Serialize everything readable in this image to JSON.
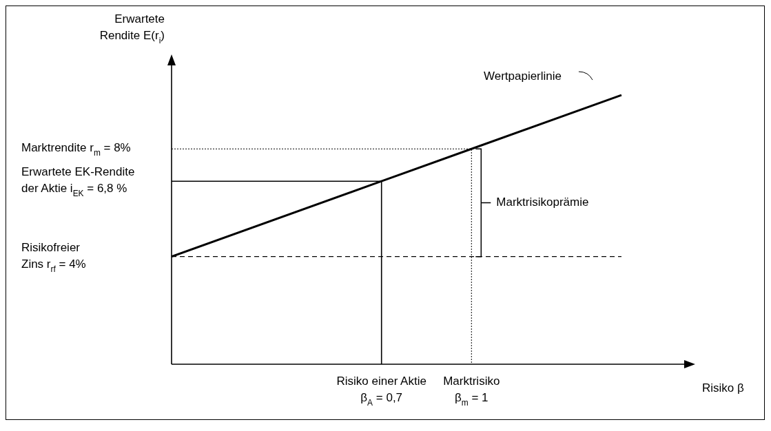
{
  "chart_data": {
    "type": "line",
    "xlabel": "Risiko β",
    "ylabel": "Erwartete\nRendite E(r$_{i}$)",
    "ylim": [
      0,
      11
    ],
    "categories": [
      null,
      null,
      null,
      null,
      null,
      null,
      null,
      "Risiko einer Aktie\nβ$_{A}$ = 0,7",
      null,
      null,
      "Marktrisiko\nβ$_{m}$ = 1",
      null,
      null,
      null,
      null,
      null,
      null,
      null
    ],
    "yticks": [
      {
        "value": 4,
        "label": "Risikofreier\nZins r$_{rf}$ = 4%"
      },
      {
        "value": 6.8,
        "label": "Erwartete EK-Rendite\nder Aktie i$_{EK}$ = 6,8 %"
      },
      {
        "value": 8,
        "label": "Marktrendite r$_{m}$ = 8%"
      }
    ],
    "series": [
      {
        "name": "Wertpapierlinie",
        "color": "#000000",
        "values": [
          4,
          null,
          null,
          null,
          null,
          null,
          null,
          6.8,
          null,
          null,
          8,
          null,
          null,
          null,
          null,
          10,
          null,
          null
        ]
      },
      {
        "color": "#000000",
        "values": [
          4,
          null,
          null,
          null,
          null,
          null,
          null,
          null,
          null,
          null,
          null,
          null,
          null,
          null,
          null,
          4,
          null,
          null
        ],
        "line_style": "dashed"
      }
    ],
    "ref_lines": [
      {
        "axis": "y",
        "value": 8,
        "color": "#000000",
        "line_style": "dotted"
      },
      {
        "axis": "y",
        "value": 6.8,
        "color": "#000000",
        "line_style": "solid"
      }
    ],
    "annotations": [
      "Marktrisikoprämie"
    ],
    "grid": false,
    "legend": "top right",
    "marker": "none"
  }
}
